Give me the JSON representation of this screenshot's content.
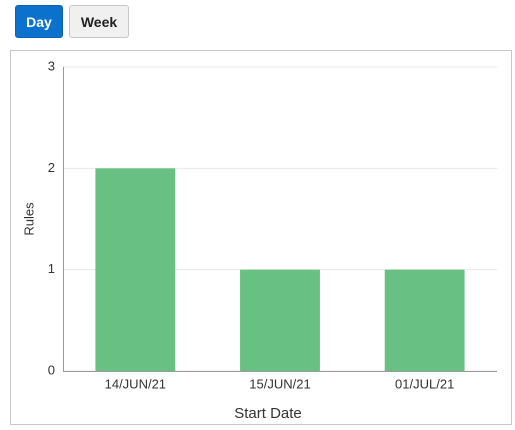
{
  "controls": {
    "buttons": [
      "Day",
      "Week"
    ]
  },
  "chart_data": {
    "type": "bar",
    "x_label": "Start Date",
    "y_label": "Rules",
    "categories": [
      "14/JUN/21",
      "15/JUN/21",
      "01/JUL/21"
    ],
    "values": [
      2,
      1,
      1
    ],
    "color": "#68c083",
    "ylim": [
      0,
      3
    ],
    "yticks": [
      0,
      1,
      2,
      3
    ],
    "grid": true
  }
}
